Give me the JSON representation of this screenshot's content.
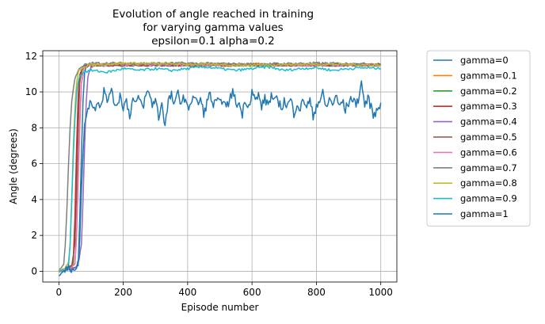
{
  "chart_data": {
    "type": "line",
    "title_lines": [
      "Evolution of angle reached in training",
      "for varying gamma values",
      "epsilon=0.1 alpha=0.2"
    ],
    "xlabel": "Episode number",
    "ylabel": "Angle (degrees)",
    "xlim": [
      -50,
      1050
    ],
    "ylim": [
      -0.6,
      12.3
    ],
    "xticks": [
      0,
      200,
      400,
      600,
      800,
      1000
    ],
    "yticks": [
      0,
      2,
      4,
      6,
      8,
      10,
      12
    ],
    "grid": true,
    "legend_position": "outside-right",
    "series": [
      {
        "name": "gamma=0",
        "color": "#1f77b4",
        "points": [
          [
            0,
            0
          ],
          [
            20,
            0.1
          ],
          [
            40,
            0.05
          ],
          [
            50,
            0.2
          ],
          [
            60,
            0.3
          ],
          [
            65,
            3
          ],
          [
            70,
            6.5
          ],
          [
            75,
            9.5
          ],
          [
            80,
            11
          ],
          [
            85,
            11.4
          ],
          [
            95,
            11.5
          ],
          [
            200,
            11.5
          ],
          [
            400,
            11.5
          ],
          [
            600,
            11.5
          ],
          [
            800,
            11.5
          ],
          [
            1000,
            11.5
          ]
        ]
      },
      {
        "name": "gamma=0.1",
        "color": "#ff7f0e",
        "points": [
          [
            0,
            0
          ],
          [
            20,
            0.1
          ],
          [
            40,
            0.2
          ],
          [
            50,
            0.4
          ],
          [
            55,
            2
          ],
          [
            60,
            5
          ],
          [
            65,
            8
          ],
          [
            70,
            10.5
          ],
          [
            78,
            11.3
          ],
          [
            90,
            11.5
          ],
          [
            200,
            11.55
          ],
          [
            400,
            11.5
          ],
          [
            600,
            11.55
          ],
          [
            800,
            11.5
          ],
          [
            1000,
            11.55
          ]
        ]
      },
      {
        "name": "gamma=0.2",
        "color": "#2ca02c",
        "points": [
          [
            0,
            0
          ],
          [
            20,
            0.1
          ],
          [
            40,
            0.2
          ],
          [
            45,
            0.5
          ],
          [
            50,
            2.5
          ],
          [
            55,
            6
          ],
          [
            60,
            9
          ],
          [
            65,
            10.8
          ],
          [
            72,
            11.3
          ],
          [
            85,
            11.5
          ],
          [
            200,
            11.5
          ],
          [
            400,
            11.55
          ],
          [
            600,
            11.5
          ],
          [
            800,
            11.55
          ],
          [
            1000,
            11.5
          ]
        ]
      },
      {
        "name": "gamma=0.3",
        "color": "#d62728",
        "points": [
          [
            0,
            0
          ],
          [
            20,
            0.1
          ],
          [
            40,
            0.3
          ],
          [
            45,
            0.8
          ],
          [
            50,
            3
          ],
          [
            55,
            7
          ],
          [
            60,
            9.8
          ],
          [
            65,
            11
          ],
          [
            75,
            11.4
          ],
          [
            90,
            11.5
          ],
          [
            200,
            11.5
          ],
          [
            400,
            11.5
          ],
          [
            600,
            11.5
          ],
          [
            800,
            11.5
          ],
          [
            1000,
            11.5
          ]
        ]
      },
      {
        "name": "gamma=0.4",
        "color": "#9467bd",
        "points": [
          [
            0,
            0
          ],
          [
            30,
            0.1
          ],
          [
            50,
            0.2
          ],
          [
            60,
            0.4
          ],
          [
            70,
            1.5
          ],
          [
            75,
            4
          ],
          [
            80,
            7
          ],
          [
            85,
            9.5
          ],
          [
            90,
            10.8
          ],
          [
            100,
            11.4
          ],
          [
            110,
            11.5
          ],
          [
            200,
            11.5
          ],
          [
            400,
            11.5
          ],
          [
            600,
            11.5
          ],
          [
            800,
            11.5
          ],
          [
            1000,
            11.5
          ]
        ]
      },
      {
        "name": "gamma=0.5",
        "color": "#8c564b",
        "points": [
          [
            0,
            0
          ],
          [
            20,
            0.1
          ],
          [
            40,
            0.3
          ],
          [
            50,
            1.5
          ],
          [
            55,
            4.5
          ],
          [
            60,
            8
          ],
          [
            65,
            10.5
          ],
          [
            72,
            11.3
          ],
          [
            85,
            11.5
          ],
          [
            200,
            11.5
          ],
          [
            400,
            11.5
          ],
          [
            600,
            11.5
          ],
          [
            800,
            11.5
          ],
          [
            1000,
            11.5
          ]
        ]
      },
      {
        "name": "gamma=0.6",
        "color": "#e377c2",
        "points": [
          [
            0,
            0
          ],
          [
            20,
            0.1
          ],
          [
            40,
            0.2
          ],
          [
            50,
            0.5
          ],
          [
            55,
            2
          ],
          [
            60,
            5.5
          ],
          [
            65,
            8.5
          ],
          [
            70,
            10.5
          ],
          [
            78,
            11.3
          ],
          [
            90,
            11.5
          ],
          [
            200,
            11.55
          ],
          [
            400,
            11.5
          ],
          [
            600,
            11.5
          ],
          [
            800,
            11.5
          ],
          [
            1000,
            11.5
          ]
        ]
      },
      {
        "name": "gamma=0.7",
        "color": "#7f7f7f",
        "points": [
          [
            0,
            0
          ],
          [
            15,
            0.4
          ],
          [
            20,
            1.5
          ],
          [
            25,
            3.5
          ],
          [
            30,
            6
          ],
          [
            35,
            8
          ],
          [
            40,
            9.5
          ],
          [
            50,
            10.8
          ],
          [
            60,
            11.2
          ],
          [
            80,
            11.5
          ],
          [
            100,
            11.6
          ],
          [
            200,
            11.6
          ],
          [
            400,
            11.6
          ],
          [
            600,
            11.55
          ],
          [
            800,
            11.6
          ],
          [
            1000,
            11.55
          ]
        ]
      },
      {
        "name": "gamma=0.8",
        "color": "#bcbd22",
        "points": [
          [
            0,
            0
          ],
          [
            20,
            0.2
          ],
          [
            30,
            0.5
          ],
          [
            35,
            1.5
          ],
          [
            40,
            4
          ],
          [
            45,
            7
          ],
          [
            50,
            9
          ],
          [
            55,
            10.5
          ],
          [
            62,
            11.2
          ],
          [
            75,
            11.4
          ],
          [
            90,
            11.5
          ],
          [
            200,
            11.6
          ],
          [
            400,
            11.55
          ],
          [
            600,
            11.5
          ],
          [
            800,
            11.55
          ],
          [
            1000,
            11.5
          ]
        ]
      },
      {
        "name": "gamma=0.9",
        "color": "#17becf",
        "points": [
          [
            0,
            0
          ],
          [
            20,
            0.1
          ],
          [
            30,
            0.3
          ],
          [
            35,
            1.5
          ],
          [
            40,
            4
          ],
          [
            45,
            6.5
          ],
          [
            50,
            8.5
          ],
          [
            55,
            10
          ],
          [
            62,
            10.8
          ],
          [
            75,
            11.1
          ],
          [
            100,
            11.2
          ],
          [
            150,
            11.1
          ],
          [
            200,
            11.3
          ],
          [
            250,
            11.2
          ],
          [
            300,
            11.3
          ],
          [
            350,
            11.2
          ],
          [
            400,
            11.3
          ],
          [
            450,
            11.4
          ],
          [
            500,
            11.3
          ],
          [
            550,
            11.2
          ],
          [
            600,
            11.3
          ],
          [
            650,
            11.4
          ],
          [
            700,
            11.2
          ],
          [
            750,
            11.3
          ],
          [
            800,
            11.35
          ],
          [
            850,
            11.2
          ],
          [
            900,
            11.3
          ],
          [
            950,
            11.35
          ],
          [
            1000,
            11.3
          ]
        ]
      },
      {
        "name": "gamma=1",
        "color": "#1f77b4",
        "points": [
          [
            0,
            0
          ],
          [
            30,
            0.1
          ],
          [
            55,
            0.3
          ],
          [
            62,
            0.5
          ],
          [
            65,
            2
          ],
          [
            70,
            4.5
          ],
          [
            75,
            6.5
          ],
          [
            80,
            8
          ],
          [
            85,
            8.8
          ],
          [
            90,
            9.2
          ],
          [
            100,
            9.5
          ],
          [
            110,
            9.0
          ],
          [
            120,
            9.6
          ],
          [
            130,
            9.2
          ],
          [
            140,
            10.1
          ],
          [
            150,
            9.4
          ],
          [
            160,
            10.2
          ],
          [
            170,
            9.5
          ],
          [
            180,
            9.3
          ],
          [
            190,
            9.8
          ],
          [
            200,
            9.2
          ],
          [
            210,
            9.5
          ],
          [
            220,
            8.7
          ],
          [
            230,
            9.6
          ],
          [
            240,
            9.3
          ],
          [
            250,
            9.7
          ],
          [
            260,
            9.1
          ],
          [
            270,
            9.8
          ],
          [
            280,
            10.0
          ],
          [
            290,
            9.3
          ],
          [
            300,
            9.6
          ],
          [
            310,
            8.6
          ],
          [
            320,
            9.4
          ],
          [
            330,
            8.1
          ],
          [
            340,
            9.5
          ],
          [
            350,
            9.8
          ],
          [
            360,
            9.2
          ],
          [
            370,
            10.0
          ],
          [
            380,
            9.4
          ],
          [
            390,
            9.7
          ],
          [
            400,
            9.0
          ],
          [
            410,
            9.5
          ],
          [
            420,
            9.8
          ],
          [
            430,
            9.3
          ],
          [
            440,
            9.6
          ],
          [
            450,
            8.8
          ],
          [
            460,
            9.4
          ],
          [
            470,
            9.9
          ],
          [
            480,
            9.2
          ],
          [
            490,
            9.5
          ],
          [
            500,
            9.3
          ],
          [
            510,
            9.7
          ],
          [
            520,
            9.0
          ],
          [
            530,
            9.6
          ],
          [
            540,
            10.0
          ],
          [
            550,
            9.4
          ],
          [
            560,
            9.3
          ],
          [
            570,
            8.8
          ],
          [
            580,
            9.6
          ],
          [
            590,
            9.2
          ],
          [
            600,
            10.1
          ],
          [
            610,
            9.5
          ],
          [
            620,
            9.8
          ],
          [
            630,
            9.2
          ],
          [
            640,
            9.6
          ],
          [
            650,
            9.3
          ],
          [
            660,
            9.8
          ],
          [
            670,
            9.4
          ],
          [
            680,
            9.6
          ],
          [
            690,
            9.1
          ],
          [
            700,
            9.5
          ],
          [
            710,
            9.2
          ],
          [
            720,
            9.6
          ],
          [
            730,
            8.8
          ],
          [
            740,
            9.4
          ],
          [
            750,
            9.0
          ],
          [
            760,
            9.6
          ],
          [
            770,
            9.2
          ],
          [
            780,
            9.5
          ],
          [
            790,
            8.6
          ],
          [
            800,
            9.3
          ],
          [
            810,
            9.5
          ],
          [
            820,
            9.9
          ],
          [
            830,
            9.1
          ],
          [
            840,
            9.6
          ],
          [
            850,
            9.3
          ],
          [
            860,
            9.8
          ],
          [
            870,
            9.2
          ],
          [
            880,
            9.5
          ],
          [
            890,
            9.0
          ],
          [
            900,
            9.4
          ],
          [
            910,
            9.7
          ],
          [
            920,
            9.3
          ],
          [
            930,
            9.6
          ],
          [
            940,
            10.5
          ],
          [
            950,
            9.3
          ],
          [
            960,
            9.6
          ],
          [
            970,
            9.2
          ],
          [
            980,
            8.6
          ],
          [
            990,
            9.1
          ],
          [
            1000,
            9.4
          ]
        ]
      }
    ]
  }
}
